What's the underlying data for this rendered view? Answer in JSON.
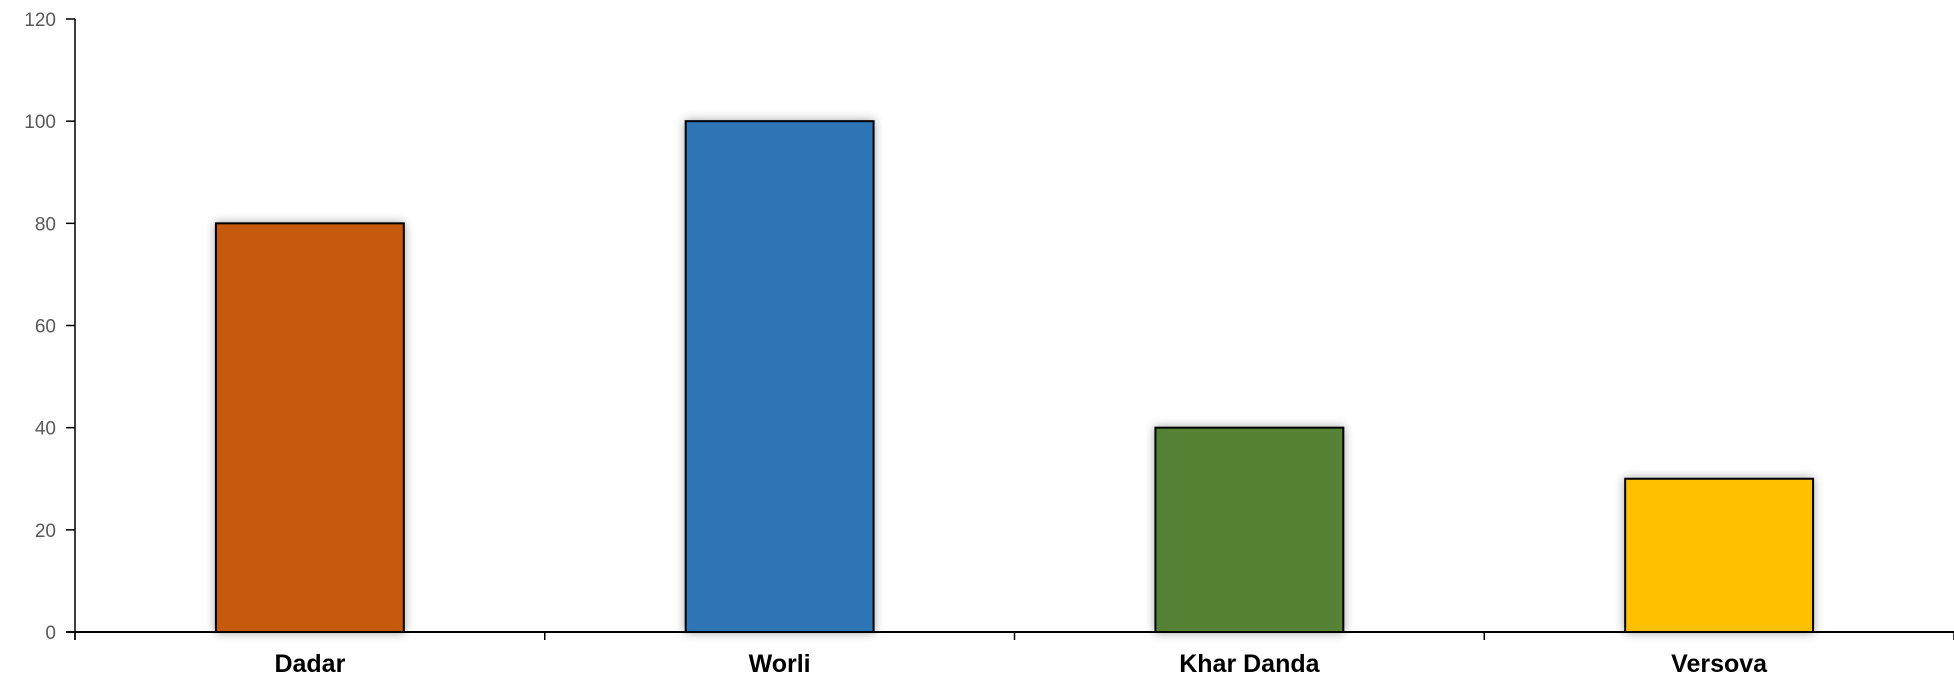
{
  "chart_data": {
    "type": "bar",
    "title": "",
    "xlabel": "",
    "ylabel": "",
    "categories": [
      "Dadar",
      "Worli",
      "Khar Danda",
      "Versova"
    ],
    "values": [
      80,
      100,
      40,
      30
    ],
    "colors": [
      "#C55A11",
      "#2E75B6",
      "#548235",
      "#FFC000"
    ],
    "ylim": [
      0,
      120
    ],
    "yticks": [
      0,
      20,
      40,
      60,
      80,
      100,
      120
    ],
    "grid": false,
    "legend": "none"
  }
}
